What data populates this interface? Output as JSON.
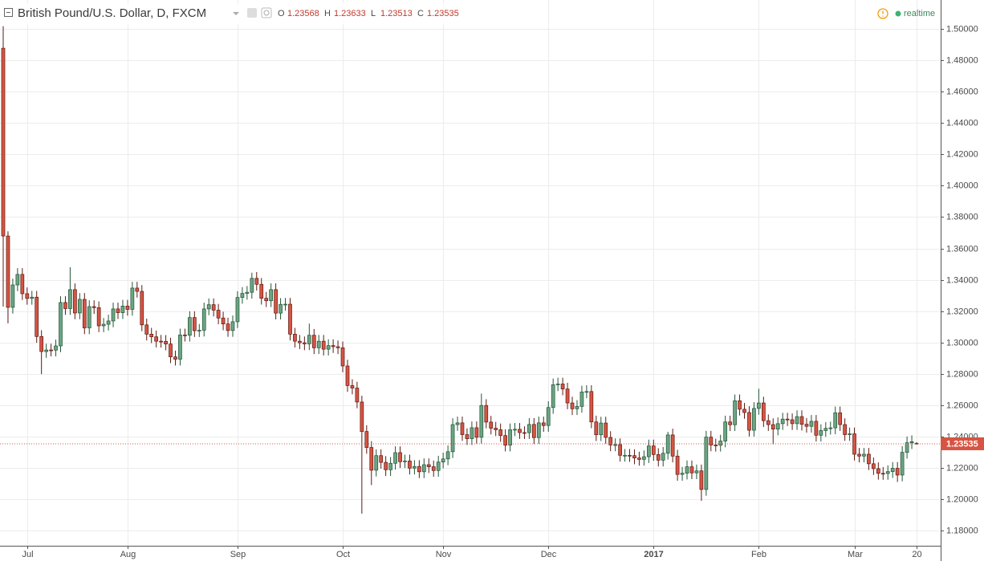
{
  "chart_data": {
    "type": "candlestick",
    "title": "British Pound/U.S. Dollar, D, FXCM",
    "ohlc_labels": [
      "O",
      "H",
      "L",
      "C"
    ],
    "status": "realtime",
    "up_color": "#6ba583",
    "down_color": "#d75442",
    "grid": true,
    "categories": [
      null,
      null,
      null,
      null,
      null,
      "Jul",
      null,
      null,
      null,
      null,
      null,
      null,
      null,
      null,
      null,
      null,
      null,
      null,
      null,
      null,
      null,
      null,
      null,
      null,
      null,
      null,
      "Aug",
      null,
      null,
      null,
      null,
      null,
      null,
      null,
      null,
      null,
      null,
      null,
      null,
      null,
      null,
      null,
      null,
      null,
      null,
      null,
      null,
      null,
      null,
      "Sep",
      null,
      null,
      null,
      null,
      null,
      null,
      null,
      null,
      null,
      null,
      null,
      null,
      null,
      null,
      null,
      null,
      null,
      null,
      null,
      null,
      null,
      "Oct",
      null,
      null,
      null,
      null,
      null,
      null,
      null,
      null,
      null,
      null,
      null,
      null,
      null,
      null,
      null,
      null,
      null,
      null,
      null,
      null,
      "Nov",
      null,
      null,
      null,
      null,
      null,
      null,
      null,
      null,
      null,
      null,
      null,
      null,
      null,
      null,
      null,
      null,
      null,
      null,
      null,
      null,
      null,
      "Dec",
      null,
      null,
      null,
      null,
      null,
      null,
      null,
      null,
      null,
      null,
      null,
      null,
      null,
      null,
      null,
      null,
      null,
      null,
      null,
      null,
      null,
      "2017",
      null,
      null,
      null,
      null,
      null,
      null,
      null,
      null,
      null,
      null,
      null,
      null,
      null,
      null,
      null,
      null,
      null,
      null,
      null,
      null,
      null,
      "Feb",
      null,
      null,
      null,
      null,
      null,
      null,
      null,
      null,
      null,
      null,
      null,
      null,
      null,
      null,
      null,
      null,
      null,
      null,
      null,
      "Mar",
      null,
      null,
      null,
      null,
      null,
      null,
      null,
      null,
      null,
      null,
      null,
      null,
      "20"
    ],
    "open": [
      1.4877,
      1.3679,
      1.3224,
      1.3367,
      1.3434,
      1.3311,
      1.3281,
      1.3289,
      1.3038,
      1.2942,
      1.2952,
      1.2951,
      1.2978,
      1.3255,
      1.3216,
      1.3337,
      1.3188,
      1.3275,
      1.3093,
      1.3229,
      1.3222,
      1.3106,
      1.3116,
      1.3137,
      1.3214,
      1.319,
      1.3232,
      1.3211,
      1.3347,
      1.3326,
      1.3112,
      1.3053,
      1.3036,
      1.3008,
      1.3007,
      1.299,
      1.2908,
      1.2893,
      1.3048,
      1.3046,
      1.3159,
      1.3075,
      1.3078,
      1.3214,
      1.3241,
      1.3206,
      1.3156,
      1.3118,
      1.3076,
      1.3132,
      1.3287,
      1.3313,
      1.332,
      1.3409,
      1.3371,
      1.3282,
      1.3266,
      1.3337,
      1.3187,
      1.3243,
      1.3244,
      1.3053,
      1.3008,
      1.2998,
      1.2991,
      1.3046,
      1.2966,
      1.3008,
      1.2957,
      1.298,
      1.2973,
      1.2966,
      1.285,
      1.2725,
      1.2709,
      1.262,
      1.2432,
      1.233,
      1.2185,
      1.2278,
      1.2235,
      1.2188,
      1.2229,
      1.2297,
      1.2239,
      1.2244,
      1.2198,
      1.2209,
      1.2175,
      1.222,
      1.2207,
      1.2183,
      1.2237,
      1.2257,
      1.2303,
      1.2476,
      1.2487,
      1.2412,
      1.2386,
      1.2456,
      1.2395,
      1.2598,
      1.2492,
      1.2453,
      1.2443,
      1.2406,
      1.2345,
      1.2443,
      1.2446,
      1.2425,
      1.2424,
      1.2477,
      1.2393,
      1.2487,
      1.247,
      1.2585,
      1.273,
      1.2735,
      1.2703,
      1.2614,
      1.2577,
      1.2592,
      1.2684,
      1.2687,
      1.2493,
      1.2411,
      1.2486,
      1.2394,
      1.2346,
      1.2348,
      1.228,
      1.228,
      1.2278,
      1.2263,
      1.2254,
      1.2271,
      1.234,
      1.2285,
      1.2249,
      1.2293,
      1.241,
      1.2275,
      1.2158,
      1.2166,
      1.2207,
      1.2168,
      1.2181,
      1.2062,
      1.2396,
      1.2346,
      1.2344,
      1.2371,
      1.2493,
      1.2475,
      1.2628,
      1.2574,
      1.2553,
      1.244,
      1.2579,
      1.2614,
      1.2501,
      1.2476,
      1.2447,
      1.2482,
      1.2511,
      1.2507,
      1.2482,
      1.2527,
      1.2478,
      1.2465,
      1.2497,
      1.2408,
      1.2438,
      1.2452,
      1.2455,
      1.2551,
      1.2476,
      1.2412,
      1.2417,
      1.2287,
      1.2275,
      1.2287,
      1.2226,
      1.2195,
      1.2165,
      1.2164,
      1.2176,
      1.2197,
      1.2154,
      1.2299,
      1.236,
      1.23568
    ],
    "high": [
      1.5018,
      1.3709,
      1.3407,
      1.3474,
      1.3474,
      1.3351,
      1.3329,
      1.3329,
      1.3078,
      1.2992,
      1.2992,
      1.3018,
      1.3295,
      1.3295,
      1.348,
      1.3377,
      1.3315,
      1.3315,
      1.3269,
      1.3269,
      1.3262,
      1.3156,
      1.3177,
      1.3254,
      1.3254,
      1.3272,
      1.3272,
      1.3387,
      1.3387,
      1.3366,
      1.3152,
      1.3093,
      1.3076,
      1.3048,
      1.3047,
      1.303,
      1.2948,
      1.3088,
      1.3088,
      1.3199,
      1.3199,
      1.3118,
      1.3254,
      1.3281,
      1.3281,
      1.3246,
      1.3196,
      1.3158,
      1.3172,
      1.3327,
      1.3353,
      1.336,
      1.3445,
      1.3449,
      1.3411,
      1.3322,
      1.3377,
      1.3377,
      1.3283,
      1.3284,
      1.3284,
      1.3093,
      1.3048,
      1.3038,
      1.312,
      1.3086,
      1.3048,
      1.3048,
      1.302,
      1.302,
      1.3013,
      1.3006,
      1.289,
      1.2765,
      1.2749,
      1.266,
      1.2472,
      1.237,
      1.2318,
      1.2318,
      1.2275,
      1.2269,
      1.2337,
      1.2337,
      1.2284,
      1.2284,
      1.2249,
      1.2249,
      1.226,
      1.226,
      1.2247,
      1.2277,
      1.2297,
      1.2343,
      1.2516,
      1.2527,
      1.2527,
      1.2452,
      1.2496,
      1.2496,
      1.2674,
      1.2638,
      1.2532,
      1.2493,
      1.2483,
      1.2446,
      1.2483,
      1.2486,
      1.2486,
      1.2465,
      1.2517,
      1.2517,
      1.2527,
      1.2527,
      1.2625,
      1.277,
      1.2775,
      1.2775,
      1.2743,
      1.2654,
      1.2632,
      1.2724,
      1.2727,
      1.2727,
      1.2533,
      1.2526,
      1.2526,
      1.2434,
      1.2388,
      1.2388,
      1.232,
      1.232,
      1.2318,
      1.2303,
      1.2311,
      1.238,
      1.238,
      1.2325,
      1.2333,
      1.243,
      1.245,
      1.2315,
      1.2206,
      1.2247,
      1.2247,
      1.2221,
      1.2221,
      1.2436,
      1.2436,
      1.2386,
      1.2411,
      1.2533,
      1.2533,
      1.2668,
      1.2668,
      1.2614,
      1.2593,
      1.2619,
      1.2705,
      1.2654,
      1.2541,
      1.2516,
      1.2522,
      1.2551,
      1.2551,
      1.2547,
      1.2567,
      1.2567,
      1.2518,
      1.2537,
      1.2537,
      1.2478,
      1.2492,
      1.2495,
      1.2591,
      1.2591,
      1.2516,
      1.2457,
      1.2457,
      1.2327,
      1.2327,
      1.2327,
      1.2266,
      1.2235,
      1.2205,
      1.2216,
      1.2237,
      1.2237,
      1.2339,
      1.24,
      1.2407,
      1.23633
    ],
    "low": [
      1.3229,
      1.3122,
      1.3184,
      1.3327,
      1.3271,
      1.3241,
      1.3241,
      1.2998,
      1.2798,
      1.2902,
      1.2911,
      1.2911,
      1.2938,
      1.3176,
      1.3176,
      1.3148,
      1.3148,
      1.3053,
      1.3053,
      1.3182,
      1.3066,
      1.3066,
      1.3076,
      1.3097,
      1.315,
      1.315,
      1.3171,
      1.3171,
      1.3286,
      1.3072,
      1.3013,
      1.2996,
      1.2968,
      1.2967,
      1.295,
      1.2868,
      1.2853,
      1.2853,
      1.3006,
      1.3006,
      1.3035,
      1.3035,
      1.3038,
      1.3174,
      1.3166,
      1.3116,
      1.3078,
      1.3036,
      1.3036,
      1.3092,
      1.3247,
      1.3273,
      1.328,
      1.3331,
      1.3242,
      1.3226,
      1.3226,
      1.3147,
      1.3147,
      1.3203,
      1.3013,
      1.2968,
      1.2958,
      1.2951,
      1.2951,
      1.2926,
      1.2926,
      1.2917,
      1.2917,
      1.2933,
      1.2926,
      1.281,
      1.2685,
      1.2669,
      1.258,
      1.1908,
      1.229,
      1.209,
      1.2145,
      1.2195,
      1.2148,
      1.2148,
      1.2189,
      1.2199,
      1.2199,
      1.2158,
      1.2158,
      1.2135,
      1.2135,
      1.2167,
      1.2143,
      1.2143,
      1.2197,
      1.2217,
      1.2263,
      1.2436,
      1.2372,
      1.2346,
      1.2346,
      1.2355,
      1.2355,
      1.2452,
      1.2413,
      1.2403,
      1.2366,
      1.2305,
      1.2305,
      1.2403,
      1.2385,
      1.2384,
      1.2384,
      1.2353,
      1.2353,
      1.243,
      1.243,
      1.2545,
      1.269,
      1.2663,
      1.2574,
      1.2537,
      1.2537,
      1.2552,
      1.2644,
      1.2453,
      1.2371,
      1.2371,
      1.2354,
      1.2306,
      1.2306,
      1.224,
      1.224,
      1.2238,
      1.2223,
      1.2214,
      1.2214,
      1.2231,
      1.2245,
      1.2209,
      1.2209,
      1.2253,
      1.2235,
      1.2118,
      1.2118,
      1.2126,
      1.2128,
      1.2128,
      1.199,
      1.2022,
      1.2306,
      1.2304,
      1.2304,
      1.2331,
      1.2435,
      1.2435,
      1.2534,
      1.2513,
      1.24,
      1.24,
      1.2539,
      1.2461,
      1.2436,
      1.235,
      1.2407,
      1.2442,
      1.2467,
      1.2442,
      1.2442,
      1.2438,
      1.2425,
      1.2425,
      1.2368,
      1.2368,
      1.2398,
      1.2412,
      1.2415,
      1.2436,
      1.2372,
      1.2372,
      1.2247,
      1.2235,
      1.2235,
      1.2186,
      1.2155,
      1.2125,
      1.2124,
      1.2124,
      1.2136,
      1.211,
      1.2114,
      1.2259,
      1.232,
      1.23513
    ],
    "close": [
      1.3679,
      1.3224,
      1.3367,
      1.3434,
      1.3311,
      1.3281,
      1.3289,
      1.3038,
      1.2942,
      1.2952,
      1.2951,
      1.2978,
      1.3255,
      1.3216,
      1.3337,
      1.3188,
      1.3275,
      1.3093,
      1.3229,
      1.3222,
      1.3106,
      1.3116,
      1.3137,
      1.3214,
      1.319,
      1.3232,
      1.3211,
      1.3347,
      1.3326,
      1.3112,
      1.3053,
      1.3036,
      1.3008,
      1.3007,
      1.299,
      1.2908,
      1.2893,
      1.3048,
      1.3046,
      1.3159,
      1.3075,
      1.3078,
      1.3214,
      1.3241,
      1.3206,
      1.3156,
      1.3118,
      1.3076,
      1.3132,
      1.3287,
      1.3313,
      1.332,
      1.3409,
      1.3371,
      1.3282,
      1.3266,
      1.3337,
      1.3187,
      1.3243,
      1.3244,
      1.3053,
      1.3008,
      1.2998,
      1.2991,
      1.3046,
      1.2966,
      1.3008,
      1.2957,
      1.298,
      1.2973,
      1.2966,
      1.285,
      1.2725,
      1.2709,
      1.262,
      1.2432,
      1.233,
      1.2185,
      1.2278,
      1.2235,
      1.2188,
      1.2229,
      1.2297,
      1.2239,
      1.2244,
      1.2198,
      1.2209,
      1.2175,
      1.222,
      1.2207,
      1.2183,
      1.2237,
      1.2257,
      1.2303,
      1.2476,
      1.2487,
      1.2412,
      1.2386,
      1.2456,
      1.2395,
      1.2598,
      1.2492,
      1.2453,
      1.2443,
      1.2406,
      1.2345,
      1.2443,
      1.2446,
      1.2425,
      1.2424,
      1.2477,
      1.2393,
      1.2487,
      1.247,
      1.2585,
      1.273,
      1.2735,
      1.2703,
      1.2614,
      1.2577,
      1.2592,
      1.2684,
      1.2687,
      1.2493,
      1.2411,
      1.2486,
      1.2394,
      1.2346,
      1.2348,
      1.228,
      1.228,
      1.2278,
      1.2263,
      1.2254,
      1.2271,
      1.234,
      1.2285,
      1.2249,
      1.2293,
      1.241,
      1.2275,
      1.2158,
      1.2166,
      1.2207,
      1.2168,
      1.2181,
      1.2062,
      1.2396,
      1.2346,
      1.2344,
      1.2371,
      1.2493,
      1.2475,
      1.2628,
      1.2574,
      1.2553,
      1.244,
      1.2579,
      1.2614,
      1.2501,
      1.2476,
      1.2447,
      1.2482,
      1.2511,
      1.2507,
      1.2482,
      1.2527,
      1.2478,
      1.2465,
      1.2497,
      1.2408,
      1.2438,
      1.2452,
      1.2455,
      1.2551,
      1.2476,
      1.2412,
      1.2417,
      1.2287,
      1.2275,
      1.2287,
      1.2226,
      1.2195,
      1.2165,
      1.2164,
      1.2176,
      1.2197,
      1.2154,
      1.2299,
      1.236,
      1.2367,
      1.23535
    ],
    "ylim": [
      1.1703,
      1.5108
    ],
    "yticks": [
      {
        "value": 1.18,
        "label": "1.18000"
      },
      {
        "value": 1.2,
        "label": "1.20000"
      },
      {
        "value": 1.22,
        "label": "1.22000"
      },
      {
        "value": 1.24,
        "label": "1.24000"
      },
      {
        "value": 1.26,
        "label": "1.26000"
      },
      {
        "value": 1.28,
        "label": "1.28000"
      },
      {
        "value": 1.3,
        "label": "1.30000"
      },
      {
        "value": 1.32,
        "label": "1.32000"
      },
      {
        "value": 1.34,
        "label": "1.34000"
      },
      {
        "value": 1.36,
        "label": "1.36000"
      },
      {
        "value": 1.38,
        "label": "1.38000"
      },
      {
        "value": 1.4,
        "label": "1.40000"
      },
      {
        "value": 1.42,
        "label": "1.42000"
      },
      {
        "value": 1.44,
        "label": "1.44000"
      },
      {
        "value": 1.46,
        "label": "1.46000"
      },
      {
        "value": 1.48,
        "label": "1.48000"
      },
      {
        "value": 1.5,
        "label": "1.50000"
      }
    ]
  }
}
